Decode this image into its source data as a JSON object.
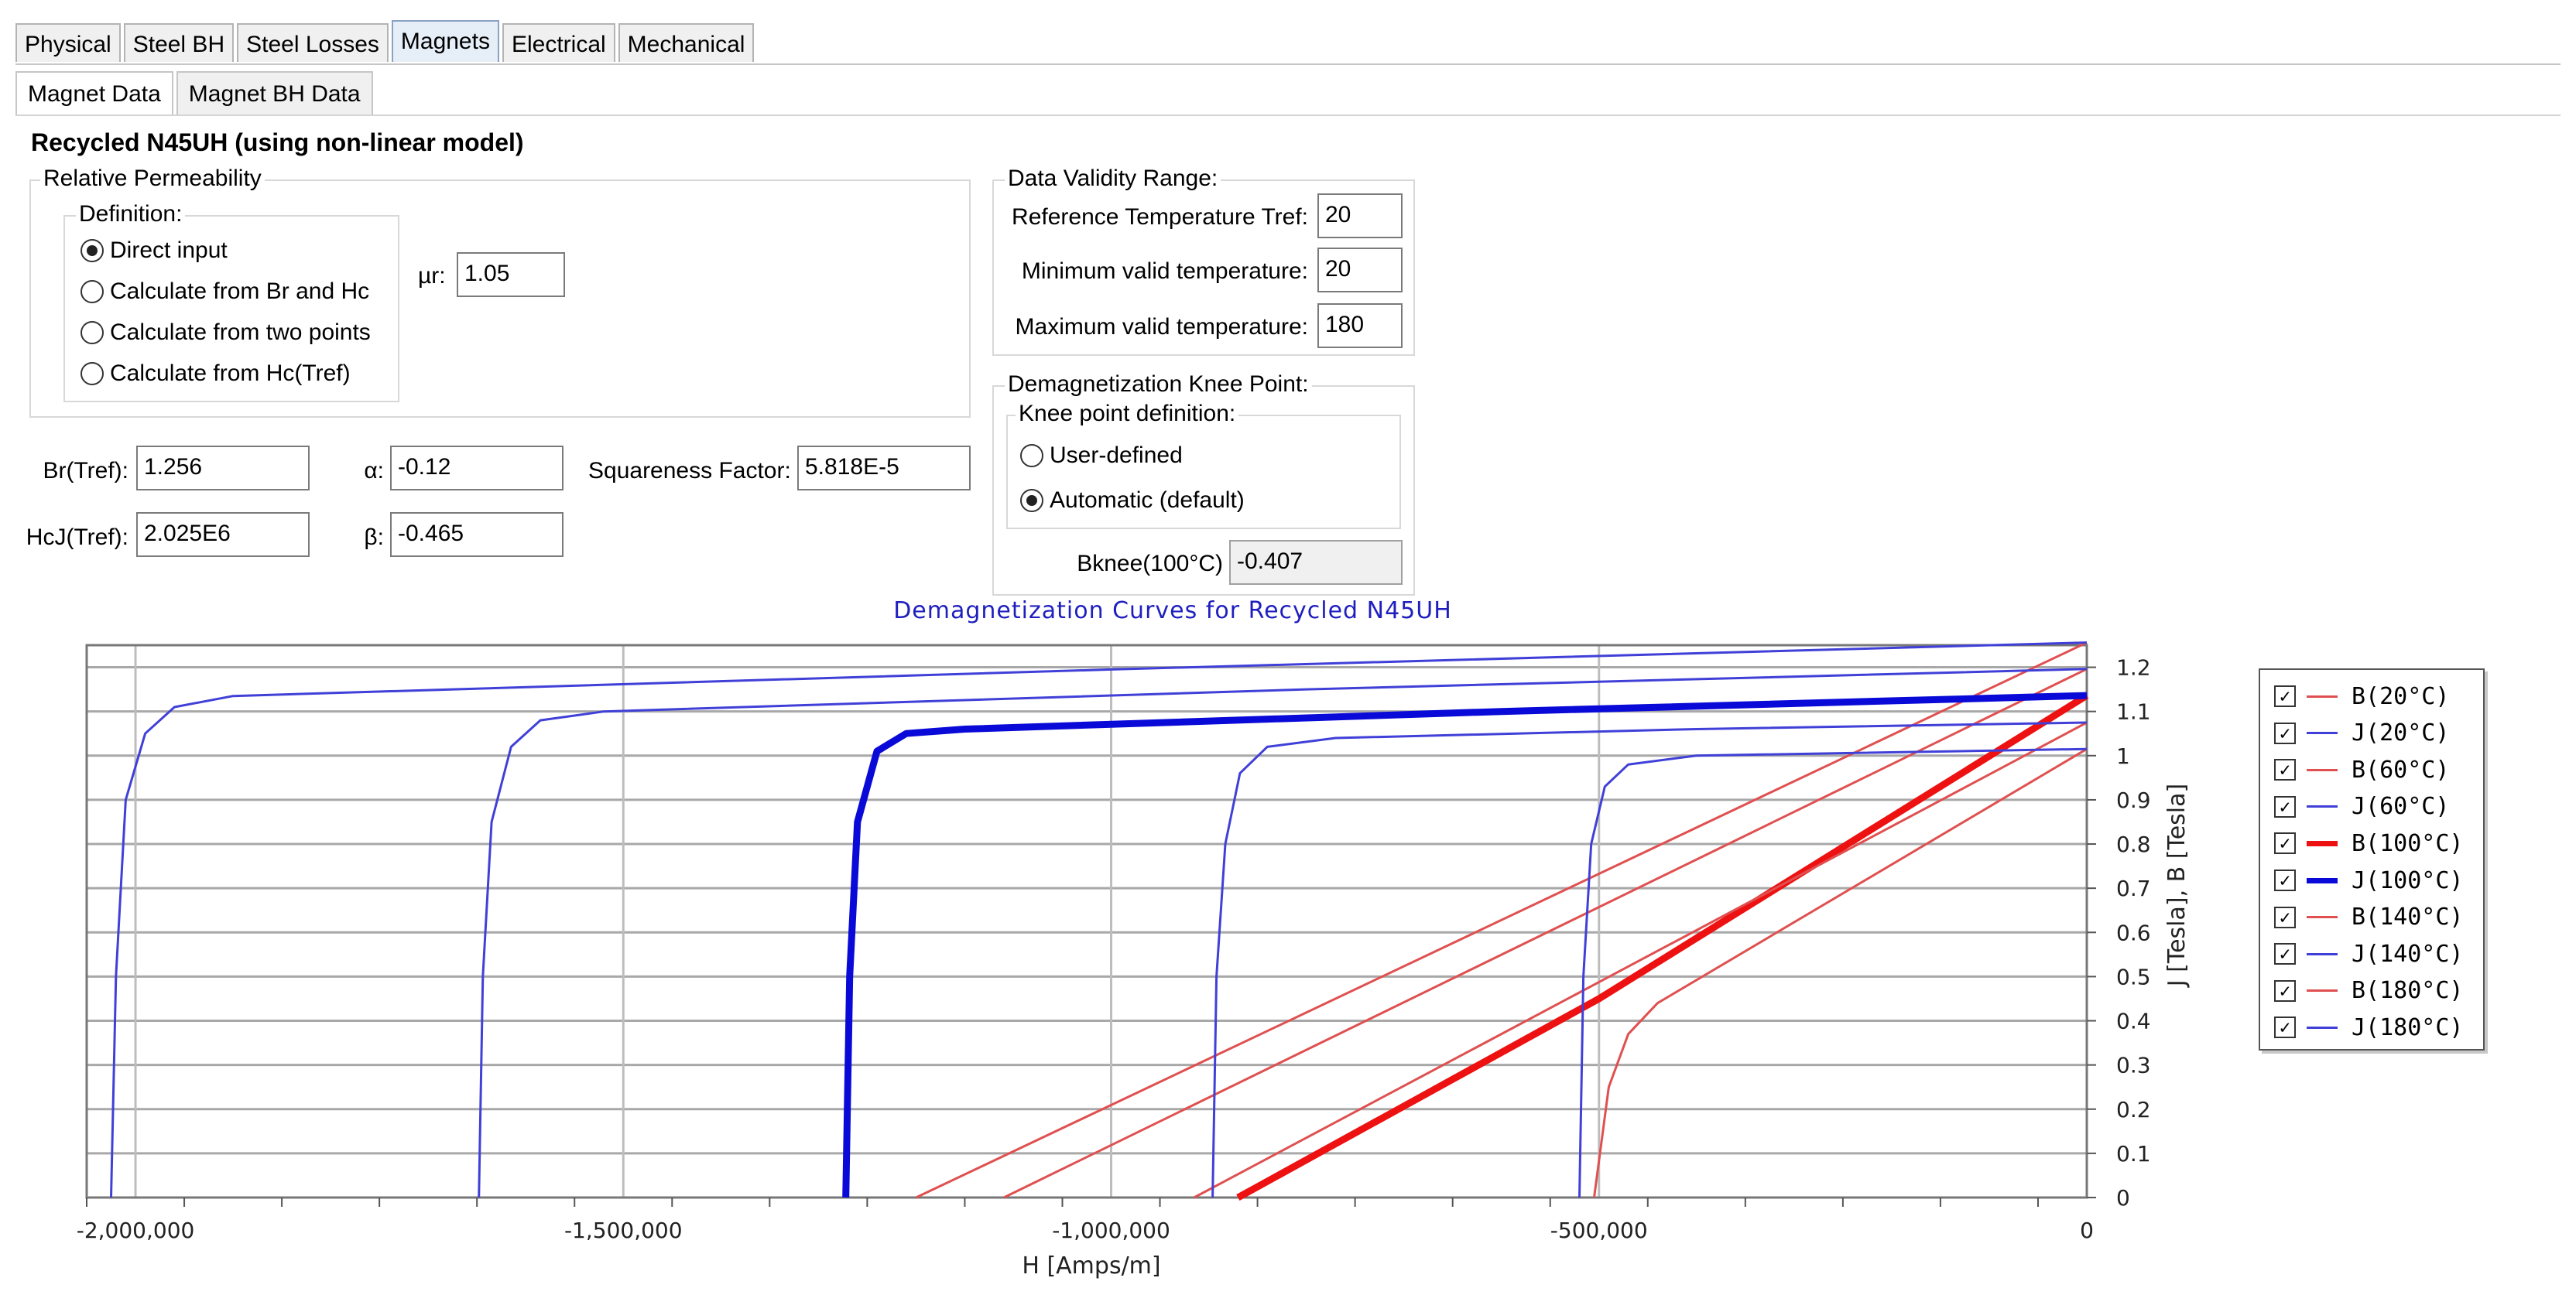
{
  "tabs": [
    "Physical",
    "Steel BH",
    "Steel Losses",
    "Magnets",
    "Electrical",
    "Mechanical"
  ],
  "active_tab": "Magnets",
  "subtabs": [
    "Magnet Data",
    "Magnet BH Data"
  ],
  "active_subtab": "Magnet Data",
  "material_title": "Recycled N45UH (using non-linear model)",
  "relative_permeability": {
    "group_label": "Relative Permeability",
    "definition_label": "Definition:",
    "options": [
      "Direct input",
      "Calculate from Br and Hc",
      "Calculate from two points",
      "Calculate from Hc(Tref)"
    ],
    "selected": "Direct input",
    "mu_label": "µr:",
    "mu_value": "1.05"
  },
  "params": {
    "br_label": "Br(Tref):",
    "br_value": "1.256",
    "hcj_label": "HcJ(Tref):",
    "hcj_value": "2.025E6",
    "alpha_label": "α:",
    "alpha_value": "-0.12",
    "beta_label": "β:",
    "beta_value": "-0.465",
    "squareness_label": "Squareness Factor:",
    "squareness_value": "5.818E-5"
  },
  "validity": {
    "group_label": "Data Validity Range:",
    "tref_label": "Reference Temperature Tref:",
    "tref_value": "20",
    "min_label": "Minimum valid temperature:",
    "min_value": "20",
    "max_label": "Maximum valid temperature:",
    "max_value": "180"
  },
  "knee": {
    "group_label": "Demagnetization Knee Point:",
    "definition_label": "Knee point definition:",
    "options": [
      "User-defined",
      "Automatic (default)"
    ],
    "selected": "Automatic (default)",
    "bknee_label": "Bknee(100°C)",
    "bknee_value": "-0.407"
  },
  "colors": {
    "b_curve": "#e05050",
    "j_curve": "#4040d8",
    "b_bold": "#ee1111",
    "j_bold": "#0a0ad8",
    "title": "#1f1fbf"
  },
  "chart_data": {
    "type": "line",
    "title": "Demagnetization Curves for Recycled N45UH",
    "xlabel": "H [Amps/m]",
    "ylabel": "J [Tesla], B [Tesla]",
    "xlim": [
      -2050000,
      0
    ],
    "ylim": [
      0,
      1.25
    ],
    "xticks": [
      -2000000,
      -1500000,
      -1000000,
      -500000,
      0
    ],
    "xtick_labels": [
      "-2,000,000",
      "-1,500,000",
      "-1,000,000",
      "-500,000",
      "0"
    ],
    "yticks": [
      0,
      0.1,
      0.2,
      0.3,
      0.4,
      0.5,
      0.6,
      0.7,
      0.8,
      0.9,
      1,
      1.1,
      1.2
    ],
    "ytick_labels": [
      "0",
      "0.1",
      "0.2",
      "0.3",
      "0.4",
      "0.5",
      "0.6",
      "0.7",
      "0.8",
      "0.9",
      "1",
      "1.1",
      "1.2"
    ],
    "legend_position": "right",
    "grid": true,
    "series": [
      {
        "name": "B(20°C)",
        "kind": "B",
        "bold": false,
        "points": [
          [
            -1200000,
            0
          ],
          [
            0,
            1.256
          ]
        ]
      },
      {
        "name": "J(20°C)",
        "kind": "J",
        "bold": false,
        "points": [
          [
            -2025000,
            0
          ],
          [
            -2020000,
            0.5
          ],
          [
            -2010000,
            0.9
          ],
          [
            -1990000,
            1.05
          ],
          [
            -1960000,
            1.11
          ],
          [
            -1900000,
            1.135
          ],
          [
            -1000000,
            1.195
          ],
          [
            0,
            1.256
          ]
        ]
      },
      {
        "name": "B(60°C)",
        "kind": "B",
        "bold": false,
        "points": [
          [
            -1110000,
            0
          ],
          [
            0,
            1.196
          ]
        ]
      },
      {
        "name": "J(60°C)",
        "kind": "J",
        "bold": false,
        "points": [
          [
            -1648000,
            0
          ],
          [
            -1644000,
            0.5
          ],
          [
            -1635000,
            0.85
          ],
          [
            -1615000,
            1.02
          ],
          [
            -1585000,
            1.08
          ],
          [
            -1520000,
            1.1
          ],
          [
            -800000,
            1.15
          ],
          [
            0,
            1.196
          ]
        ]
      },
      {
        "name": "B(100°C)",
        "kind": "B",
        "bold": true,
        "points": [
          [
            -870000,
            0
          ],
          [
            -500000,
            0.45
          ],
          [
            0,
            1.136
          ]
        ]
      },
      {
        "name": "J(100°C)",
        "kind": "J",
        "bold": true,
        "points": [
          [
            -1272000,
            0
          ],
          [
            -1268000,
            0.5
          ],
          [
            -1260000,
            0.85
          ],
          [
            -1240000,
            1.01
          ],
          [
            -1210000,
            1.05
          ],
          [
            -1150000,
            1.06
          ],
          [
            -600000,
            1.1
          ],
          [
            0,
            1.136
          ]
        ]
      },
      {
        "name": "B(140°C)",
        "kind": "B",
        "bold": false,
        "points": [
          [
            -915000,
            0
          ],
          [
            0,
            1.075
          ]
        ]
      },
      {
        "name": "J(140°C)",
        "kind": "J",
        "bold": false,
        "points": [
          [
            -896000,
            0
          ],
          [
            -892000,
            0.5
          ],
          [
            -883000,
            0.8
          ],
          [
            -868000,
            0.96
          ],
          [
            -840000,
            1.02
          ],
          [
            -770000,
            1.04
          ],
          [
            -400000,
            1.06
          ],
          [
            0,
            1.075
          ]
        ]
      },
      {
        "name": "B(180°C)",
        "kind": "B",
        "bold": false,
        "points": [
          [
            -505000,
            0
          ],
          [
            -490000,
            0.25
          ],
          [
            -470000,
            0.37
          ],
          [
            -440000,
            0.44
          ],
          [
            0,
            1.015
          ]
        ]
      },
      {
        "name": "J(180°C)",
        "kind": "J",
        "bold": false,
        "points": [
          [
            -520000,
            0
          ],
          [
            -516000,
            0.5
          ],
          [
            -508000,
            0.8
          ],
          [
            -494000,
            0.93
          ],
          [
            -470000,
            0.98
          ],
          [
            -400000,
            1.0
          ],
          [
            0,
            1.015
          ]
        ]
      }
    ]
  }
}
